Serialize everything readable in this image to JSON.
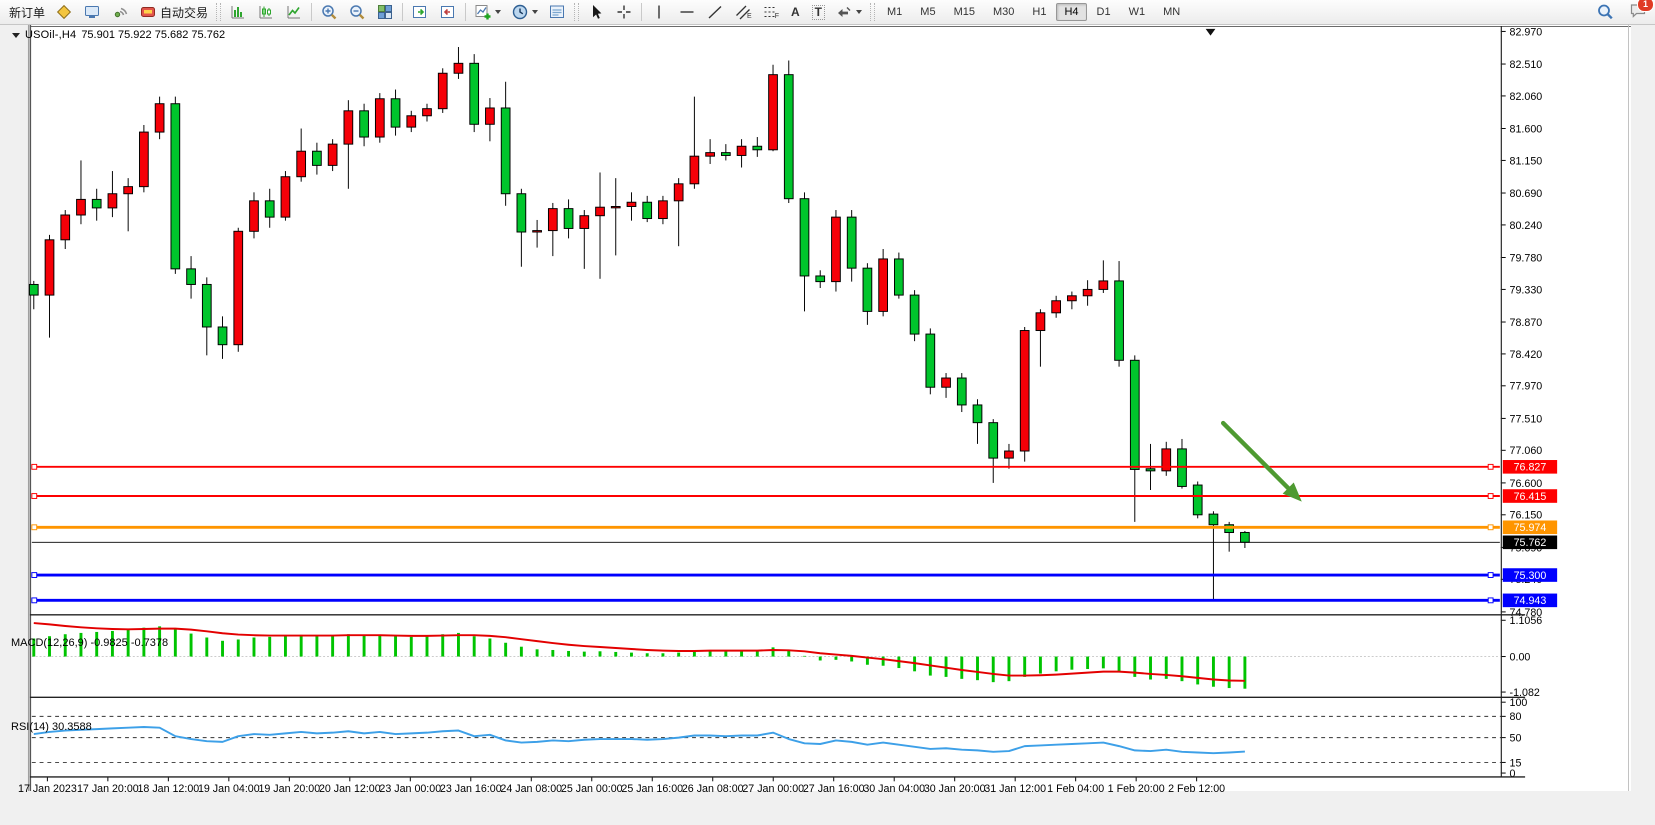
{
  "toolbar": {
    "items": [
      {
        "name": "new-order-button",
        "type": "text",
        "label": "新订单"
      },
      {
        "name": "new-chart-icon",
        "type": "icon",
        "icon": "diamond"
      },
      {
        "name": "market-watch-icon",
        "type": "icon",
        "icon": "monitor"
      },
      {
        "name": "signal-icon",
        "type": "icon",
        "icon": "signal"
      },
      {
        "name": "auto-trading-button",
        "type": "icontext",
        "icon": "robot",
        "label": "自动交易"
      },
      {
        "type": "grip"
      },
      {
        "name": "bar-chart-icon",
        "type": "icon",
        "icon": "bars"
      },
      {
        "name": "candlestick-chart-icon",
        "type": "icon",
        "icon": "candles"
      },
      {
        "name": "line-chart-icon",
        "type": "icon",
        "icon": "linechart"
      },
      {
        "type": "sep"
      },
      {
        "name": "zoom-in-icon",
        "type": "icon",
        "icon": "zoomin"
      },
      {
        "name": "zoom-out-icon",
        "type": "icon",
        "icon": "zoomout"
      },
      {
        "name": "tile-windows-icon",
        "type": "icon",
        "icon": "tiles"
      },
      {
        "type": "sep"
      },
      {
        "name": "auto-scroll-icon",
        "type": "icon",
        "icon": "autoscroll"
      },
      {
        "name": "chart-shift-icon",
        "type": "icon",
        "icon": "chartshift"
      },
      {
        "type": "sep"
      },
      {
        "name": "add-indicator-icon",
        "type": "icon",
        "icon": "indicator",
        "dropdown": true
      },
      {
        "name": "period-selector-icon",
        "type": "icon",
        "icon": "clock",
        "dropdown": true
      },
      {
        "name": "template-icon",
        "type": "icon",
        "icon": "template"
      },
      {
        "type": "grip"
      },
      {
        "name": "cursor-icon",
        "type": "icon",
        "icon": "cursor"
      },
      {
        "name": "crosshair-icon",
        "type": "icon",
        "icon": "crosshair"
      },
      {
        "type": "sep"
      },
      {
        "name": "vline-icon",
        "type": "icon",
        "icon": "vline"
      },
      {
        "name": "hline-icon",
        "type": "icon",
        "icon": "hline"
      },
      {
        "name": "trendline-icon",
        "type": "icon",
        "icon": "tline"
      },
      {
        "name": "channel-icon",
        "type": "icon",
        "icon": "channel",
        "sub": "E"
      },
      {
        "name": "fibonacci-icon",
        "type": "icon",
        "icon": "fibo",
        "sub": "F"
      },
      {
        "name": "text-tool-icon",
        "type": "glyph",
        "glyph": "A"
      },
      {
        "name": "text-label-icon",
        "type": "glyph",
        "glyph": "T",
        "boxed": true
      },
      {
        "name": "arrow-tools-icon",
        "type": "icon",
        "icon": "arrows",
        "dropdown": true
      },
      {
        "type": "grip"
      }
    ],
    "timeframes": [
      "M1",
      "M5",
      "M15",
      "M30",
      "H1",
      "H4",
      "D1",
      "W1",
      "MN"
    ],
    "active_timeframe": "H4",
    "badge_count": "1"
  },
  "chart": {
    "symbol": "USOil-,H4",
    "ohlc_text": "75.901 75.922 75.682 75.762",
    "price_axis": [
      "82.970",
      "82.510",
      "82.060",
      "81.600",
      "81.150",
      "80.690",
      "80.240",
      "79.780",
      "79.330",
      "78.870",
      "78.420",
      "77.970",
      "77.510",
      "77.060",
      "76.600",
      "76.150",
      "75.690",
      "75.240",
      "74.780"
    ],
    "lines": [
      {
        "label": "76.827",
        "price": 76.827,
        "color": "#fe0000",
        "width": 2,
        "name": "resistance-line-1"
      },
      {
        "label": "76.415",
        "price": 76.415,
        "color": "#fe0000",
        "width": 2,
        "name": "resistance-line-2"
      },
      {
        "label": "75.974",
        "price": 75.974,
        "color": "#ff9500",
        "width": 3,
        "name": "orange-level-line"
      },
      {
        "label": "75.762",
        "price": 75.762,
        "color": "#000000",
        "width": 1,
        "name": "current-price-line"
      },
      {
        "label": "75.300",
        "price": 75.3,
        "color": "#0000fe",
        "width": 3,
        "name": "support-line-1"
      },
      {
        "label": "74.943",
        "price": 74.943,
        "color": "#0000fe",
        "width": 3,
        "name": "support-line-2"
      }
    ],
    "time_axis": [
      "17 Jan 2023",
      "17 Jan 20:00",
      "18 Jan 12:00",
      "19 Jan 04:00",
      "19 Jan 20:00",
      "20 Jan 12:00",
      "23 Jan 00:00",
      "23 Jan 16:00",
      "24 Jan 08:00",
      "25 Jan 00:00",
      "25 Jan 16:00",
      "26 Jan 08:00",
      "27 Jan 00:00",
      "27 Jan 16:00",
      "30 Jan 04:00",
      "30 Jan 20:00",
      "31 Jan 12:00",
      "1 Feb 04:00",
      "1 Feb 20:00",
      "2 Feb 12:00"
    ],
    "colors": {
      "bull": "#f50008",
      "bear": "#00c52c",
      "wick": "#000000",
      "macd_hist": "#00c400",
      "macd_signal": "#e30000",
      "rsi_line": "#3da0e8",
      "arrow": "#4e9a31"
    }
  },
  "chart_data": {
    "type": "candlestick",
    "title": "USOil-,H4",
    "ohlc_note": "columns are [open,high,low,close]; red=up, green=down",
    "candles": [
      [
        79.4,
        79.45,
        79.05,
        79.25
      ],
      [
        79.25,
        80.1,
        78.65,
        80.03
      ],
      [
        80.03,
        80.45,
        79.9,
        80.38
      ],
      [
        80.38,
        81.15,
        80.25,
        80.6
      ],
      [
        80.6,
        80.75,
        80.3,
        80.48
      ],
      [
        80.48,
        81.0,
        80.35,
        80.68
      ],
      [
        80.68,
        80.9,
        80.15,
        80.78
      ],
      [
        80.78,
        81.65,
        80.7,
        81.55
      ],
      [
        81.55,
        82.05,
        81.45,
        81.95
      ],
      [
        81.95,
        82.05,
        79.55,
        79.62
      ],
      [
        79.62,
        79.8,
        79.2,
        79.4
      ],
      [
        79.4,
        79.5,
        78.4,
        78.8
      ],
      [
        78.8,
        78.95,
        78.35,
        78.55
      ],
      [
        78.55,
        80.2,
        78.45,
        80.15
      ],
      [
        80.15,
        80.7,
        80.05,
        80.58
      ],
      [
        80.58,
        80.75,
        80.2,
        80.35
      ],
      [
        80.35,
        81.0,
        80.3,
        80.92
      ],
      [
        80.92,
        81.6,
        80.85,
        81.28
      ],
      [
        81.28,
        81.4,
        80.95,
        81.08
      ],
      [
        81.08,
        81.45,
        81.0,
        81.38
      ],
      [
        81.38,
        82.0,
        80.75,
        81.85
      ],
      [
        81.85,
        81.95,
        81.35,
        81.48
      ],
      [
        81.48,
        82.1,
        81.4,
        82.02
      ],
      [
        82.02,
        82.15,
        81.5,
        81.62
      ],
      [
        81.62,
        81.85,
        81.55,
        81.78
      ],
      [
        81.78,
        81.95,
        81.7,
        81.88
      ],
      [
        81.88,
        82.45,
        81.82,
        82.38
      ],
      [
        82.38,
        82.75,
        82.3,
        82.52
      ],
      [
        82.52,
        82.65,
        81.55,
        81.66
      ],
      [
        81.66,
        82.03,
        81.42,
        81.89
      ],
      [
        81.89,
        82.26,
        80.51,
        80.68
      ],
      [
        80.68,
        80.75,
        79.65,
        80.14
      ],
      [
        80.14,
        80.31,
        79.92,
        80.16
      ],
      [
        80.16,
        80.55,
        79.8,
        80.47
      ],
      [
        80.47,
        80.6,
        80.05,
        80.19
      ],
      [
        80.19,
        80.45,
        79.62,
        80.37
      ],
      [
        80.37,
        80.98,
        79.48,
        80.49
      ],
      [
        80.49,
        80.9,
        79.81,
        80.5
      ],
      [
        80.5,
        80.7,
        80.3,
        80.56
      ],
      [
        80.56,
        80.65,
        80.28,
        80.33
      ],
      [
        80.33,
        80.65,
        80.25,
        80.58
      ],
      [
        80.58,
        80.9,
        79.94,
        80.82
      ],
      [
        80.82,
        82.05,
        80.75,
        81.21
      ],
      [
        81.21,
        81.45,
        81.1,
        81.26
      ],
      [
        81.26,
        81.38,
        81.15,
        81.22
      ],
      [
        81.22,
        81.45,
        81.05,
        81.35
      ],
      [
        81.35,
        81.48,
        81.2,
        81.3
      ],
      [
        81.3,
        82.5,
        81.28,
        82.36
      ],
      [
        82.36,
        82.56,
        80.55,
        80.61
      ],
      [
        80.61,
        80.7,
        79.02,
        79.52
      ],
      [
        79.52,
        79.6,
        79.35,
        79.44
      ],
      [
        79.44,
        80.45,
        79.3,
        80.35
      ],
      [
        80.35,
        80.45,
        79.44,
        79.63
      ],
      [
        79.63,
        79.7,
        78.83,
        79.02
      ],
      [
        79.02,
        79.9,
        78.95,
        79.76
      ],
      [
        79.76,
        79.85,
        79.2,
        79.25
      ],
      [
        79.25,
        79.32,
        78.6,
        78.7
      ],
      [
        78.7,
        78.78,
        77.85,
        77.95
      ],
      [
        77.95,
        78.15,
        77.8,
        78.08
      ],
      [
        78.08,
        78.15,
        77.6,
        77.7
      ],
      [
        77.7,
        77.78,
        77.15,
        77.45
      ],
      [
        77.45,
        77.5,
        76.6,
        76.95
      ],
      [
        76.95,
        77.15,
        76.8,
        77.05
      ],
      [
        77.05,
        78.8,
        76.9,
        78.75
      ],
      [
        78.75,
        79.05,
        78.24,
        79.0
      ],
      [
        79.0,
        79.24,
        78.93,
        79.17
      ],
      [
        79.17,
        79.3,
        79.05,
        79.24
      ],
      [
        79.24,
        79.46,
        79.1,
        79.33
      ],
      [
        79.33,
        79.74,
        79.28,
        79.45
      ],
      [
        79.45,
        79.73,
        78.24,
        78.33
      ],
      [
        78.33,
        78.4,
        76.05,
        76.79
      ],
      [
        76.8,
        77.15,
        76.5,
        76.77
      ],
      [
        76.77,
        77.18,
        76.7,
        77.08
      ],
      [
        77.08,
        77.22,
        76.52,
        76.55
      ],
      [
        76.57,
        76.62,
        76.1,
        76.15
      ],
      [
        76.16,
        76.2,
        74.95,
        76.01
      ],
      [
        76.01,
        76.05,
        75.63,
        75.9
      ],
      [
        75.901,
        75.922,
        75.682,
        75.762
      ]
    ],
    "macd": {
      "label": "MACD(12,26,9) -0.9825 -0.7378",
      "axis": [
        "1.1056",
        "0.00",
        "-1.082"
      ],
      "ylim": [
        -1.25,
        1.25
      ],
      "histogram": [
        0.55,
        0.62,
        0.68,
        0.72,
        0.75,
        0.78,
        0.82,
        0.88,
        0.92,
        0.85,
        0.7,
        0.58,
        0.48,
        0.52,
        0.58,
        0.6,
        0.63,
        0.66,
        0.64,
        0.65,
        0.68,
        0.64,
        0.66,
        0.62,
        0.6,
        0.62,
        0.68,
        0.72,
        0.62,
        0.55,
        0.42,
        0.3,
        0.22,
        0.2,
        0.17,
        0.15,
        0.16,
        0.14,
        0.12,
        0.1,
        0.1,
        0.12,
        0.18,
        0.2,
        0.19,
        0.18,
        0.17,
        0.28,
        0.18,
        0.02,
        -0.12,
        -0.1,
        -0.15,
        -0.25,
        -0.28,
        -0.35,
        -0.45,
        -0.58,
        -0.62,
        -0.68,
        -0.72,
        -0.78,
        -0.75,
        -0.62,
        -0.52,
        -0.45,
        -0.4,
        -0.38,
        -0.36,
        -0.45,
        -0.62,
        -0.7,
        -0.68,
        -0.75,
        -0.85,
        -0.92,
        -0.96,
        -0.98
      ],
      "signal": [
        1.02,
        0.98,
        0.93,
        0.89,
        0.86,
        0.84,
        0.83,
        0.84,
        0.85,
        0.85,
        0.82,
        0.77,
        0.71,
        0.67,
        0.65,
        0.64,
        0.64,
        0.64,
        0.64,
        0.64,
        0.65,
        0.65,
        0.65,
        0.64,
        0.63,
        0.63,
        0.64,
        0.65,
        0.65,
        0.63,
        0.59,
        0.53,
        0.47,
        0.41,
        0.36,
        0.32,
        0.29,
        0.26,
        0.23,
        0.2,
        0.18,
        0.17,
        0.17,
        0.18,
        0.18,
        0.18,
        0.18,
        0.2,
        0.19,
        0.16,
        0.1,
        0.06,
        0.02,
        -0.03,
        -0.08,
        -0.14,
        -0.2,
        -0.27,
        -0.34,
        -0.41,
        -0.47,
        -0.53,
        -0.58,
        -0.58,
        -0.57,
        -0.55,
        -0.52,
        -0.49,
        -0.46,
        -0.46,
        -0.49,
        -0.53,
        -0.56,
        -0.6,
        -0.65,
        -0.7,
        -0.73,
        -0.74
      ]
    },
    "rsi": {
      "label": "RSI(14) 30.3588",
      "axis": [
        "100",
        "80",
        "50",
        "15",
        "0"
      ],
      "levels": [
        80,
        50,
        15
      ],
      "ylim": [
        0,
        100
      ],
      "values": [
        55,
        58,
        60,
        61,
        62,
        63,
        64,
        65,
        64,
        52,
        48,
        45,
        44,
        52,
        55,
        54,
        56,
        58,
        56,
        57,
        59,
        56,
        58,
        55,
        56,
        57,
        59,
        60,
        52,
        54,
        46,
        43,
        44,
        46,
        45,
        47,
        48,
        48,
        48,
        47,
        48,
        50,
        53,
        53,
        52,
        53,
        53,
        57,
        48,
        42,
        41,
        46,
        44,
        40,
        43,
        40,
        37,
        34,
        35,
        33,
        32,
        30,
        31,
        38,
        39,
        40,
        41,
        42,
        43,
        38,
        32,
        31,
        33,
        30,
        29,
        28,
        29,
        30.36
      ]
    },
    "annotations": [
      {
        "type": "arrow",
        "name": "down-trend-arrow",
        "from_xy": [
          1235,
          435
        ],
        "to_xy": [
          1316,
          516
        ],
        "color": "#4e9a31"
      }
    ]
  }
}
